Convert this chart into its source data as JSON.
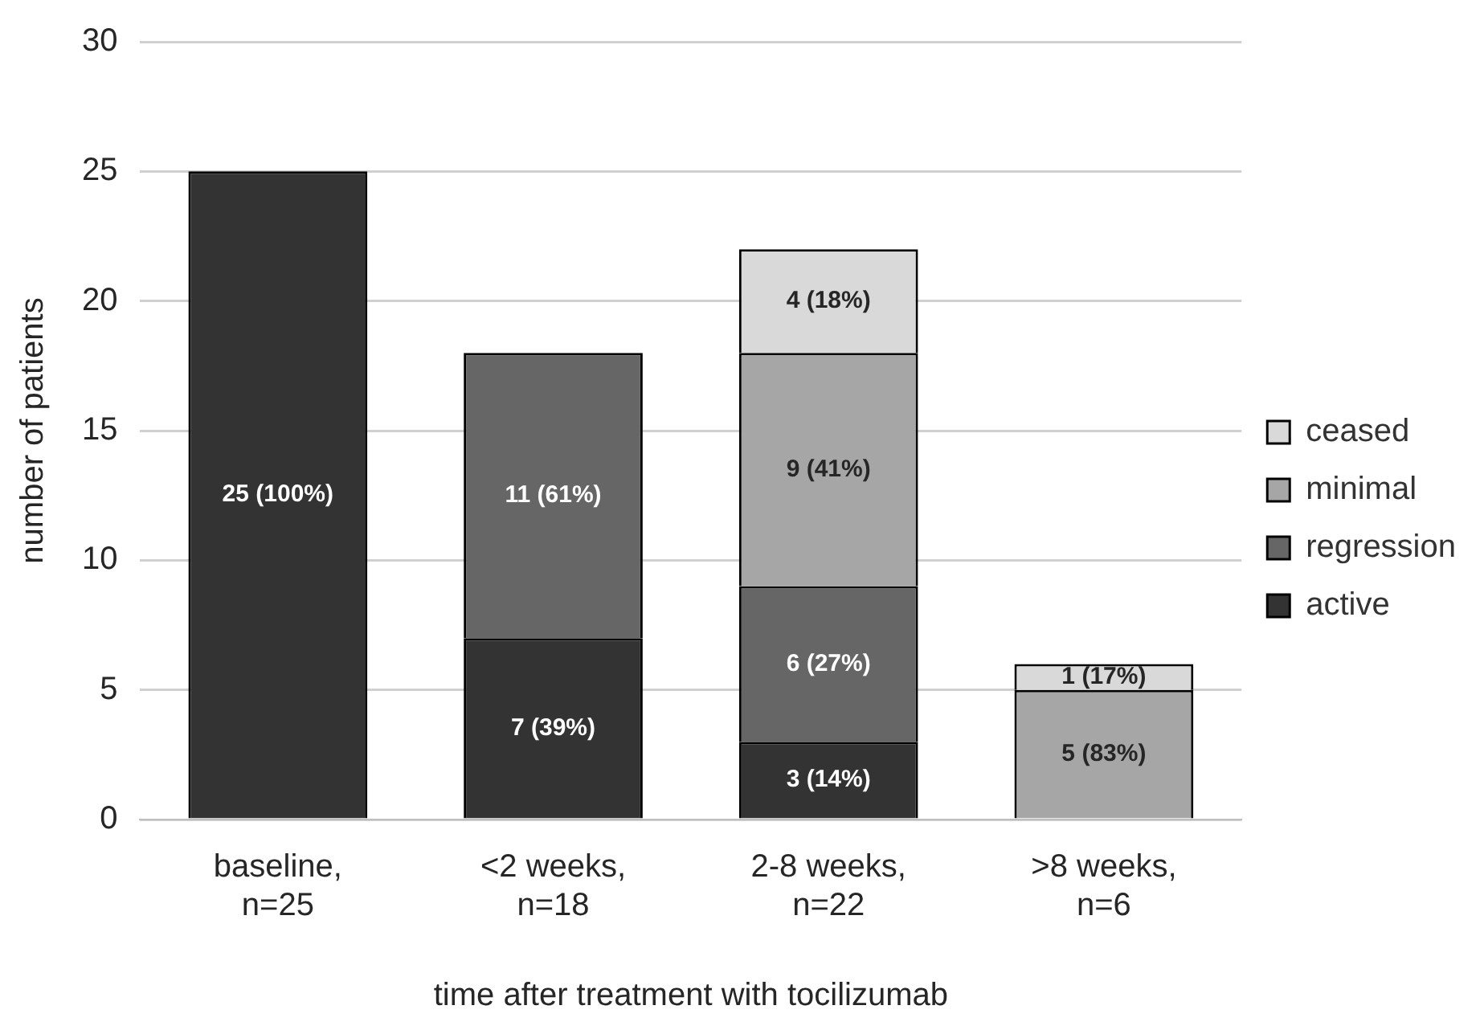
{
  "chart_data": {
    "type": "bar",
    "stacked": true,
    "xlabel": "time after treatment with tocilizumab",
    "ylabel": "number of patients",
    "categories": [
      "baseline, n=25",
      "<2 weeks, n=18",
      "2-8 weeks, n=22",
      ">8 weeks, n=6"
    ],
    "series": [
      {
        "name": "active",
        "color": "#333333",
        "values": [
          25,
          7,
          3,
          null
        ],
        "value_labels": [
          "25 (100%)",
          "7 (39%)",
          "3 (14%)",
          null
        ]
      },
      {
        "name": "regression",
        "color": "#666666",
        "values": [
          null,
          11,
          6,
          null
        ],
        "value_labels": [
          null,
          "11 (61%)",
          "6 (27%)",
          null
        ]
      },
      {
        "name": "minimal",
        "color": "#a6a6a6",
        "values": [
          null,
          null,
          9,
          5
        ],
        "value_labels": [
          null,
          null,
          "9 (41%)",
          "5 (83%)"
        ]
      },
      {
        "name": "ceased",
        "color": "#d9d9d9",
        "values": [
          null,
          null,
          4,
          1
        ],
        "value_labels": [
          null,
          null,
          "4 (18%)",
          "1 (17%)"
        ]
      }
    ],
    "ylim": [
      0,
      30
    ],
    "yticks": [
      0,
      5,
      10,
      15,
      20,
      25,
      30
    ],
    "grid": "y",
    "legend": "right"
  }
}
